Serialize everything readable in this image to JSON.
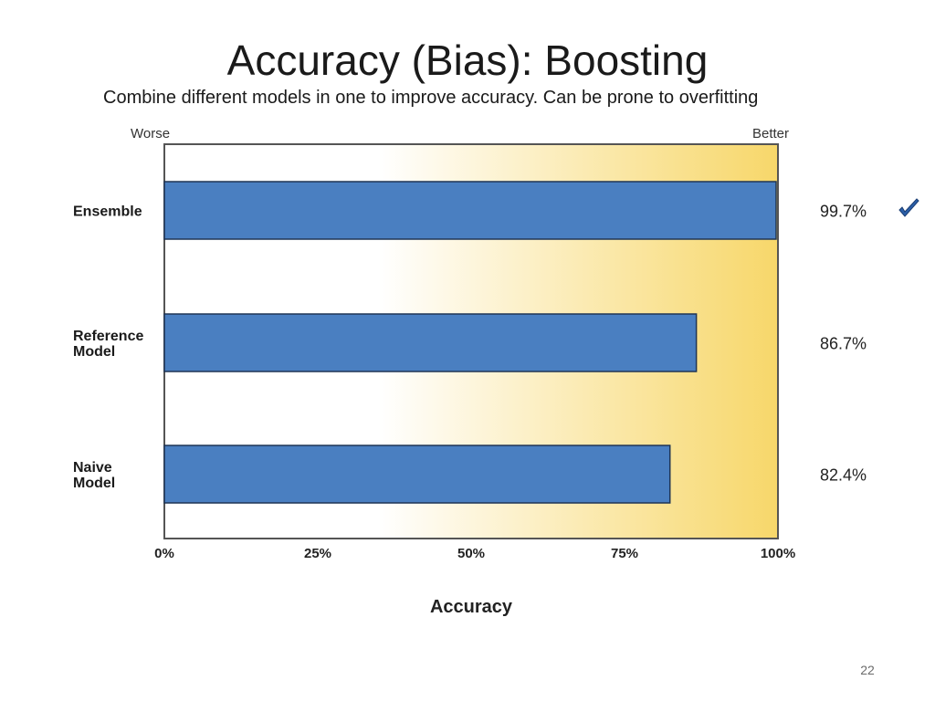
{
  "slide": {
    "title": "Accuracy (Bias): Boosting",
    "subtitle": "Combine different models in one to improve accuracy. Can be prone to overfitting",
    "page_number": "22"
  },
  "chart_data": {
    "type": "bar",
    "orientation": "horizontal",
    "title": "",
    "xlabel": "Accuracy",
    "ylabel": "",
    "scale_left_label": "Worse",
    "scale_right_label": "Better",
    "categories": [
      {
        "lines": [
          "Ensemble"
        ]
      },
      {
        "lines": [
          "Reference",
          "Model"
        ]
      },
      {
        "lines": [
          "Naive",
          "Model"
        ]
      }
    ],
    "values": [
      99.7,
      86.7,
      82.4
    ],
    "value_labels": [
      "99.7%",
      "86.7%",
      "82.4%"
    ],
    "xlim": [
      0,
      100
    ],
    "xticks": [
      0,
      25,
      50,
      75,
      100
    ],
    "xtick_labels": [
      "0%",
      "25%",
      "50%",
      "75%",
      "100%"
    ],
    "grid": false,
    "best_marker": {
      "index": 0,
      "icon": "checkmark-icon"
    },
    "colors": {
      "bar": "#4a7fc1",
      "bar_stroke": "#1f3555",
      "gradient_start": "#ffffff",
      "gradient_end": "#f7d76a",
      "frame": "#555555",
      "check": "#2b5fa8"
    }
  }
}
